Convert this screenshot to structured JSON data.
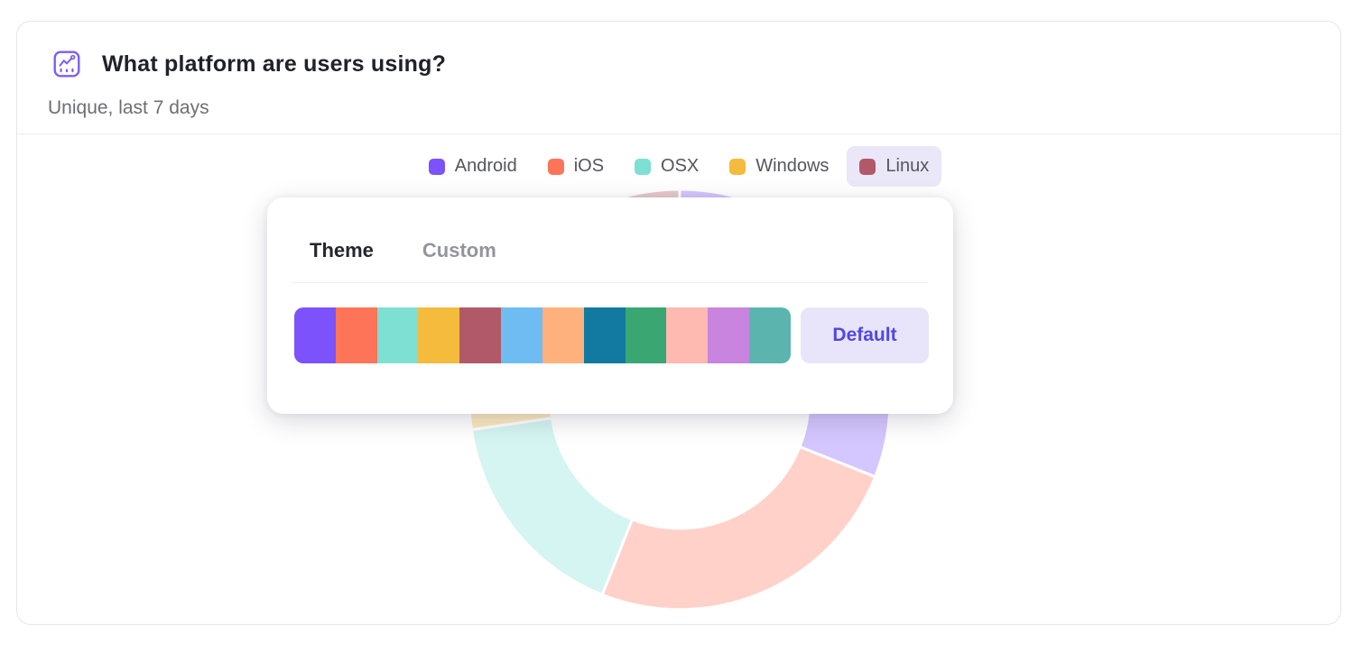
{
  "card": {
    "title": "What platform are users using?",
    "subtitle": "Unique, last 7 days"
  },
  "legend": {
    "items": [
      {
        "label": "Android",
        "color": "#7B52FB",
        "active": false
      },
      {
        "label": "iOS",
        "color": "#FE7459",
        "active": false
      },
      {
        "label": "OSX",
        "color": "#7DE0D3",
        "active": false
      },
      {
        "label": "Windows",
        "color": "#F5BB3D",
        "active": false
      },
      {
        "label": "Linux",
        "color": "#B15968",
        "active": true
      }
    ],
    "active_bg": "#EAE7F9"
  },
  "popover": {
    "tabs": [
      {
        "label": "Theme",
        "active": true
      },
      {
        "label": "Custom",
        "active": false
      }
    ],
    "palette": [
      "#7B52FB",
      "#FE7459",
      "#7DE0D3",
      "#F5BB3D",
      "#B15968",
      "#6FBCF2",
      "#FEB17C",
      "#1279A1",
      "#3AA772",
      "#FEB9B1",
      "#C884DE",
      "#5BB5AE"
    ],
    "default_button_label": "Default"
  },
  "icons": {
    "header": "chart-icon",
    "header_color": "#7C5CFC"
  },
  "chart_data": {
    "type": "pie",
    "subtype": "donut",
    "title": "What platform are users using?",
    "categories": [
      "Android",
      "iOS",
      "OSX",
      "Windows",
      "Linux"
    ],
    "estimated_percent": [
      31,
      25,
      16.7,
      17.8,
      9.5
    ],
    "colors": [
      "#7B52FB",
      "#FE7459",
      "#7DE0D3",
      "#F5BB3D",
      "#B15968"
    ],
    "legend_position": "top",
    "start_angle_deg_clockwise_from_top": 0,
    "dimmed_opacity": 0.33,
    "note_state": "chart dimmed behind open color-theme popover"
  }
}
